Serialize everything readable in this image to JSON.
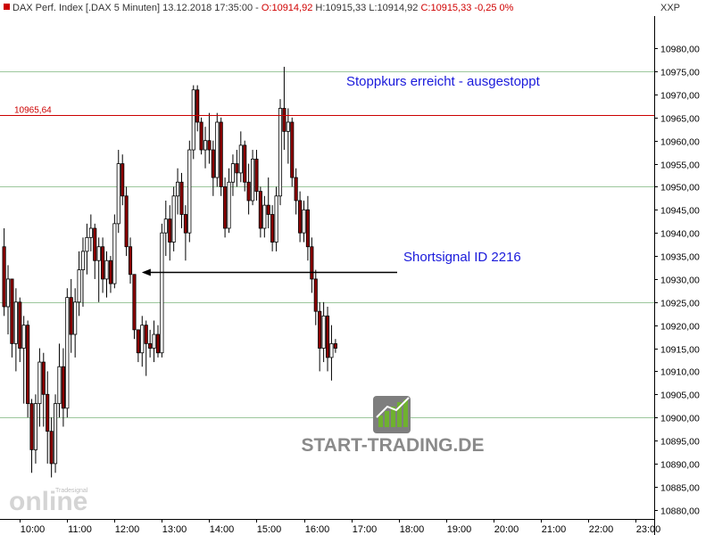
{
  "header": {
    "prefix": "DAX Perf. Index [.DAX  5 Minuten] 13.12.2018 17:35:00 - ",
    "open": "O:10914,92",
    "high": " H:10915,33",
    "low": " L:10914,92",
    "close": " C:10915,33",
    "change": " -0,25",
    "change_pct": " 0%"
  },
  "unit_label": "XXP",
  "colors": {
    "up": "#ffffff",
    "down": "#8b0000",
    "wick": "#000000",
    "stop_line": "#cc0000",
    "grid": "#9cc79c",
    "annotation": "#1a1adb"
  },
  "chart_data": {
    "type": "candlestick",
    "interval": "5 Minuten",
    "ylim": [
      10878,
      10987
    ],
    "y_ticks": [
      "10880,00",
      "10885,00",
      "10890,00",
      "10895,00",
      "10900,00",
      "10905,00",
      "10910,00",
      "10915,00",
      "10920,00",
      "10925,00",
      "10930,00",
      "10935,00",
      "10940,00",
      "10945,00",
      "10950,00",
      "10955,00",
      "10960,00",
      "10965,00",
      "10970,00",
      "10975,00",
      "10980,00"
    ],
    "x_ticks": [
      "10:00",
      "11:00",
      "12:00",
      "13:00",
      "14:00",
      "15:00",
      "16:00",
      "17:00",
      "18:00",
      "19:00",
      "20:00",
      "21:00",
      "22:00",
      "23:00"
    ],
    "x_range_hours": [
      9.58,
      23.4
    ],
    "hlines": [
      {
        "value": 10975,
        "kind": "grid"
      },
      {
        "value": 10950,
        "kind": "grid"
      },
      {
        "value": 10925,
        "kind": "grid"
      },
      {
        "value": 10900,
        "kind": "grid"
      }
    ],
    "stop_level": {
      "value": 10965.64,
      "label": "10965,64"
    },
    "annotations": {
      "stop_text": "Stoppkurs erreicht - ausgestoppt",
      "signal_text": "Shortsignal ID 2216",
      "signal_price": 10931.5,
      "signal_from_hour": 12.5,
      "signal_to_hour": 17.97
    },
    "brand": {
      "text": "START-TRADING.DE",
      "watermark_big": "online",
      "watermark_small": "Tradesignal"
    },
    "candles": [
      [
        9.667,
        10937,
        10941,
        10922,
        10924
      ],
      [
        9.75,
        10924,
        10933,
        10918,
        10930
      ],
      [
        9.833,
        10930,
        10930,
        10913,
        10916
      ],
      [
        9.917,
        10916,
        10928,
        10910,
        10925
      ],
      [
        10.0,
        10925,
        10926,
        10912,
        10915
      ],
      [
        10.083,
        10915,
        10922,
        10903,
        10920
      ],
      [
        10.167,
        10920,
        10921,
        10900,
        10903
      ],
      [
        10.25,
        10903,
        10904,
        10888,
        10893
      ],
      [
        10.333,
        10893,
        10905,
        10890,
        10903
      ],
      [
        10.417,
        10903,
        10915,
        10898,
        10912
      ],
      [
        10.5,
        10912,
        10914,
        10898,
        10905
      ],
      [
        10.583,
        10905,
        10910,
        10890,
        10897
      ],
      [
        10.667,
        10897,
        10900,
        10887,
        10890
      ],
      [
        10.75,
        10890,
        10905,
        10888,
        10903
      ],
      [
        10.833,
        10903,
        10916,
        10900,
        10911
      ],
      [
        10.917,
        10911,
        10915,
        10898,
        10902
      ],
      [
        11.0,
        10902,
        10928,
        10900,
        10926
      ],
      [
        11.083,
        10926,
        10930,
        10914,
        10918
      ],
      [
        11.167,
        10918,
        10928,
        10913,
        10925
      ],
      [
        11.25,
        10925,
        10936,
        10922,
        10932
      ],
      [
        11.333,
        10932,
        10939,
        10924,
        10936
      ],
      [
        11.417,
        10936,
        10942,
        10931,
        10939
      ],
      [
        11.5,
        10939,
        10944,
        10936,
        10941
      ],
      [
        11.583,
        10941,
        10942,
        10930,
        10934
      ],
      [
        11.667,
        10934,
        10939,
        10925,
        10937
      ],
      [
        11.75,
        10937,
        10939,
        10927,
        10930
      ],
      [
        11.833,
        10930,
        10936,
        10926,
        10934
      ],
      [
        11.917,
        10934,
        10935,
        10927,
        10929
      ],
      [
        12.0,
        10929,
        10944,
        10928,
        10942
      ],
      [
        12.083,
        10942,
        10958,
        10940,
        10955
      ],
      [
        12.167,
        10955,
        10957,
        10946,
        10948
      ],
      [
        12.25,
        10948,
        10950,
        10935,
        10937
      ],
      [
        12.333,
        10937,
        10939,
        10929,
        10931
      ],
      [
        12.417,
        10931,
        10931,
        10917,
        10919
      ],
      [
        12.5,
        10919,
        10919,
        10912,
        10914
      ],
      [
        12.583,
        10914,
        10922,
        10911,
        10920
      ],
      [
        12.667,
        10920,
        10921,
        10909,
        10916
      ],
      [
        12.75,
        10916,
        10919,
        10913,
        10915
      ],
      [
        12.833,
        10915,
        10921,
        10912,
        10918
      ],
      [
        12.917,
        10918,
        10920,
        10913,
        10914
      ],
      [
        13.0,
        10914,
        10942,
        10913,
        10940
      ],
      [
        13.083,
        10940,
        10947,
        10935,
        10943
      ],
      [
        13.167,
        10943,
        10946,
        10934,
        10938
      ],
      [
        13.25,
        10938,
        10950,
        10936,
        10948
      ],
      [
        13.333,
        10948,
        10954,
        10944,
        10951
      ],
      [
        13.417,
        10951,
        10953,
        10941,
        10944
      ],
      [
        13.5,
        10944,
        10946,
        10934,
        10940
      ],
      [
        13.583,
        10940,
        10960,
        10938,
        10958
      ],
      [
        13.667,
        10958,
        10972,
        10956,
        10971
      ],
      [
        13.75,
        10971,
        10972,
        10962,
        10964
      ],
      [
        13.833,
        10964,
        10965,
        10957,
        10958
      ],
      [
        13.917,
        10958,
        10963,
        10954,
        10960
      ],
      [
        14.0,
        10960,
        10966,
        10955,
        10958
      ],
      [
        14.083,
        10958,
        10960,
        10948,
        10952
      ],
      [
        14.167,
        10952,
        10966,
        10950,
        10964
      ],
      [
        14.25,
        10964,
        10965,
        10948,
        10950
      ],
      [
        14.333,
        10950,
        10952,
        10939,
        10941
      ],
      [
        14.417,
        10941,
        10954,
        10940,
        10951
      ],
      [
        14.5,
        10951,
        10957,
        10948,
        10955
      ],
      [
        14.583,
        10955,
        10958,
        10950,
        10953
      ],
      [
        14.667,
        10953,
        10962,
        10951,
        10959
      ],
      [
        14.75,
        10959,
        10960,
        10949,
        10951
      ],
      [
        14.833,
        10951,
        10955,
        10944,
        10947
      ],
      [
        14.917,
        10947,
        10958,
        10946,
        10956
      ],
      [
        15.0,
        10956,
        10958,
        10947,
        10949
      ],
      [
        15.083,
        10949,
        10950,
        10939,
        10941
      ],
      [
        15.167,
        10941,
        10948,
        10939,
        10946
      ],
      [
        15.25,
        10946,
        10952,
        10941,
        10944
      ],
      [
        15.333,
        10944,
        10946,
        10936,
        10938
      ],
      [
        15.417,
        10938,
        10950,
        10936,
        10948
      ],
      [
        15.5,
        10948,
        10969,
        10946,
        10967
      ],
      [
        15.583,
        10967,
        10976,
        10958,
        10962
      ],
      [
        15.667,
        10962,
        10967,
        10955,
        10964
      ],
      [
        15.75,
        10964,
        10965,
        10950,
        10952
      ],
      [
        15.833,
        10952,
        10954,
        10944,
        10947
      ],
      [
        15.917,
        10947,
        10949,
        10938,
        10940
      ],
      [
        16.0,
        10940,
        10947,
        10938,
        10945
      ],
      [
        16.083,
        10945,
        10948,
        10934,
        10937
      ],
      [
        16.167,
        10937,
        10939,
        10927,
        10930
      ],
      [
        16.25,
        10930,
        10932,
        10920,
        10923
      ],
      [
        16.333,
        10923,
        10925,
        10910,
        10915
      ],
      [
        16.417,
        10915,
        10925,
        10912,
        10922
      ],
      [
        16.5,
        10922,
        10924,
        10910,
        10913
      ],
      [
        16.583,
        10913,
        10920,
        10908,
        10916
      ],
      [
        16.667,
        10916,
        10917,
        10914,
        10915
      ]
    ]
  }
}
